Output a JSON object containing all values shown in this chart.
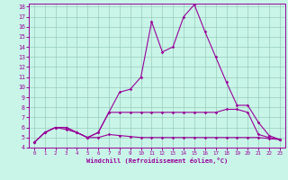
{
  "xlabel": "Windchill (Refroidissement éolien,°C)",
  "x": [
    0,
    1,
    2,
    3,
    4,
    5,
    6,
    7,
    8,
    9,
    10,
    11,
    12,
    13,
    14,
    15,
    16,
    17,
    18,
    19,
    20,
    21,
    22,
    23
  ],
  "line1": [
    4.5,
    5.5,
    6.0,
    6.0,
    5.5,
    5.0,
    5.5,
    7.5,
    7.5,
    7.5,
    7.5,
    7.5,
    7.5,
    7.5,
    7.5,
    7.5,
    7.5,
    7.5,
    7.8,
    7.8,
    7.5,
    5.3,
    5.0,
    4.8
  ],
  "line2": [
    4.5,
    5.5,
    6.0,
    5.8,
    5.5,
    5.0,
    5.0,
    5.3,
    5.2,
    5.1,
    5.0,
    5.0,
    5.0,
    5.0,
    5.0,
    5.0,
    5.0,
    5.0,
    5.0,
    5.0,
    5.0,
    5.0,
    4.9,
    4.8
  ],
  "line3": [
    4.5,
    5.5,
    6.0,
    6.0,
    5.5,
    5.0,
    5.5,
    7.5,
    9.5,
    9.8,
    11.0,
    16.5,
    13.5,
    14.0,
    17.0,
    18.2,
    15.5,
    13.0,
    10.5,
    8.2,
    8.2,
    6.5,
    5.2,
    4.8
  ],
  "bg_color": "#c8f5e8",
  "line_color": "#990099",
  "grid_color": "#99ccbb",
  "ylim": [
    4,
    18
  ],
  "xlim": [
    -0.5,
    23.5
  ],
  "yticks": [
    4,
    5,
    6,
    7,
    8,
    9,
    10,
    11,
    12,
    13,
    14,
    15,
    16,
    17,
    18
  ],
  "xticks": [
    0,
    1,
    2,
    3,
    4,
    5,
    6,
    7,
    8,
    9,
    10,
    11,
    12,
    13,
    14,
    15,
    16,
    17,
    18,
    19,
    20,
    21,
    22,
    23
  ]
}
